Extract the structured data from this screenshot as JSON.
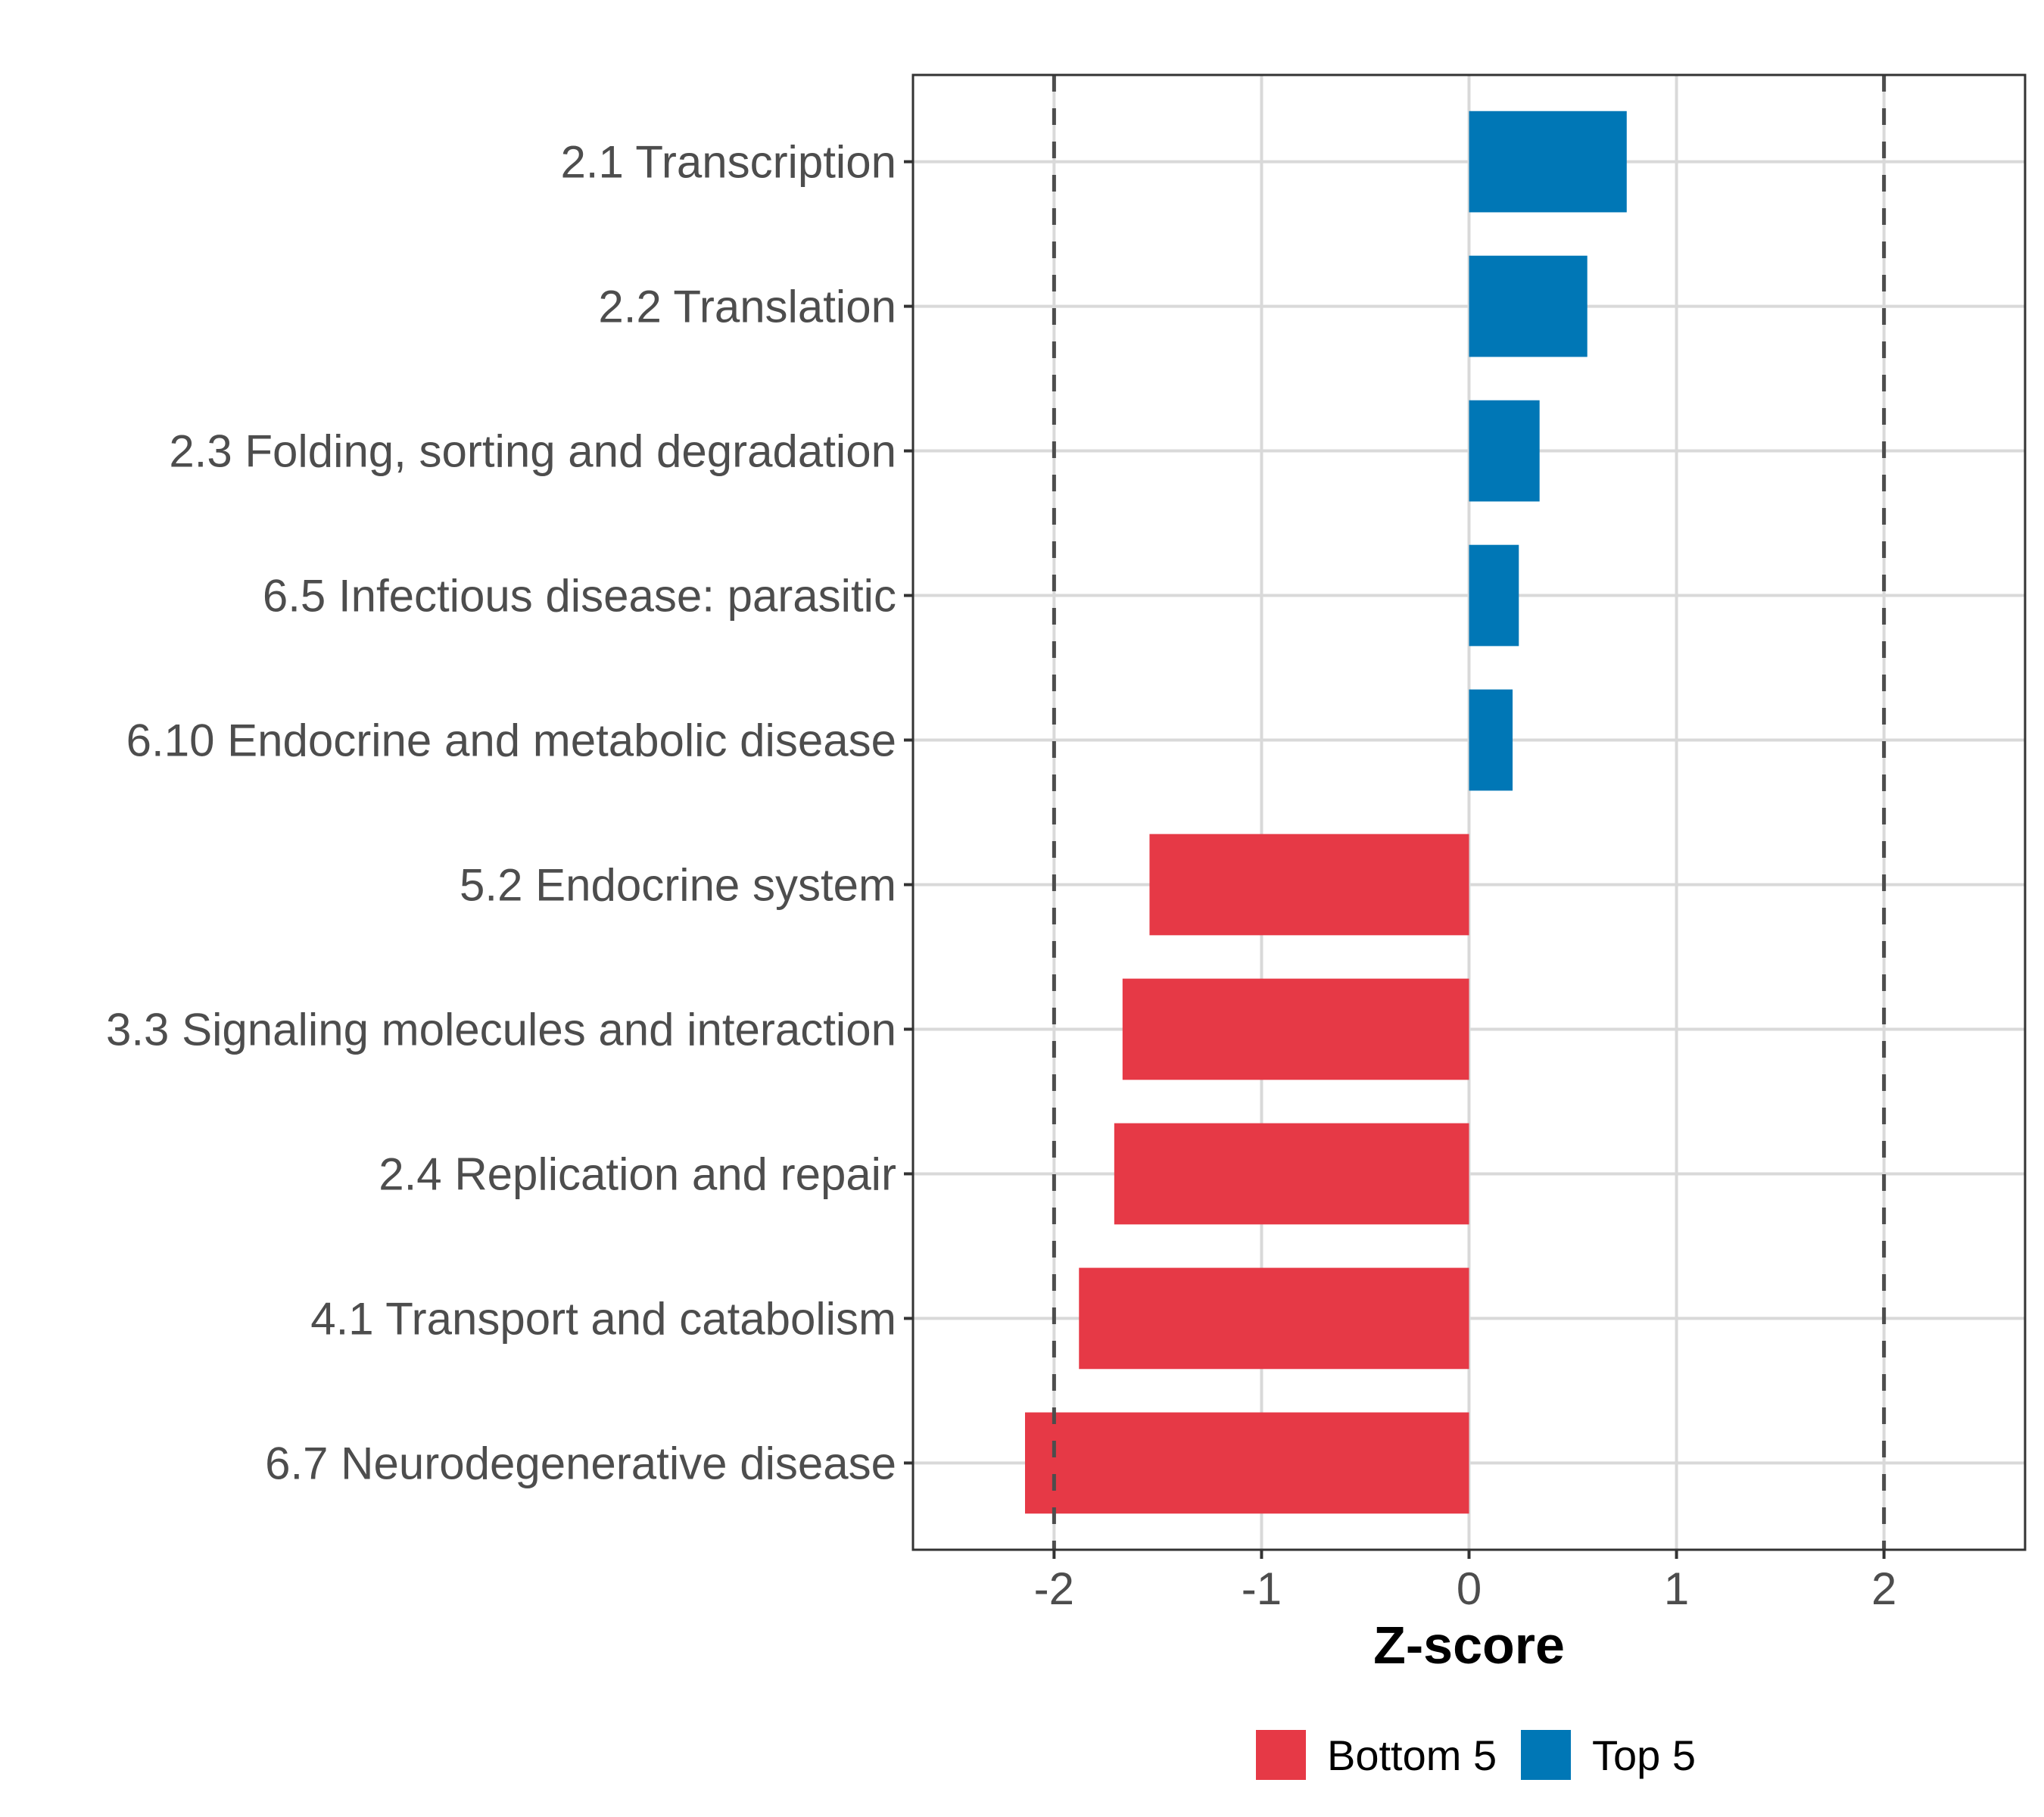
{
  "chart_data": {
    "type": "bar",
    "orientation": "horizontal",
    "title": "",
    "xlabel": "Z-score",
    "ylabel": "",
    "xlim": [
      -2.68,
      2.68
    ],
    "x_ticks": [
      -2,
      -1,
      0,
      1,
      2
    ],
    "x_tick_labels": [
      "-2",
      "-1",
      "0",
      "1",
      "2"
    ],
    "grid": true,
    "reference_lines": [
      -2,
      2
    ],
    "categories": [
      "2.1 Transcription",
      "2.2 Translation",
      "2.3 Folding, sorting and degradation",
      "6.5 Infectious disease: parasitic",
      "6.10 Endocrine and metabolic disease",
      "5.2 Endocrine system",
      "3.3 Signaling molecules and interaction",
      "2.4 Replication and repair",
      "4.1 Transport and catabolism",
      "6.7 Neurodegenerative disease"
    ],
    "values": [
      0.76,
      0.57,
      0.34,
      0.24,
      0.21,
      -1.54,
      -1.67,
      -1.71,
      -1.88,
      -2.14
    ],
    "groups": [
      "Top 5",
      "Top 5",
      "Top 5",
      "Top 5",
      "Top 5",
      "Bottom 5",
      "Bottom 5",
      "Bottom 5",
      "Bottom 5",
      "Bottom 5"
    ],
    "legend": {
      "position": "bottom",
      "entries": [
        {
          "label": "Bottom 5",
          "color": "#E63946"
        },
        {
          "label": "Top 5",
          "color": "#0077B6"
        }
      ]
    },
    "colors": {
      "Bottom 5": "#E63946",
      "Top 5": "#0077B6"
    }
  }
}
